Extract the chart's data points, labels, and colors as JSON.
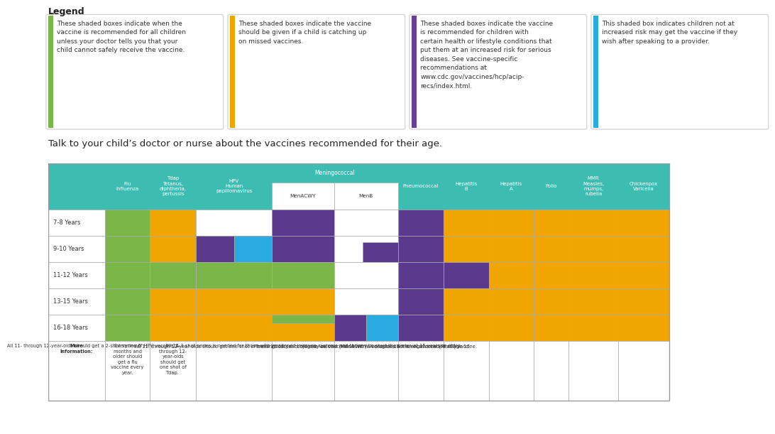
{
  "legend_items": [
    {
      "border_color": "#7ab648",
      "text": "These shaded boxes indicate when the\nvaccine is recommended for all children\nunless your doctor tells you that your\nchild cannot safely receive the vaccine."
    },
    {
      "border_color": "#f0a500",
      "text": "These shaded boxes indicate the vaccine\nshould be given if a child is catching up\non missed vaccines."
    },
    {
      "border_color": "#6a3d9a",
      "text": "These shaded boxes indicate the vaccine\nis recommended for children with\ncertain health or lifestyle conditions that\nput them at an increased risk for serious\ndiseases. See vaccine-specific\nrecommendations at\nwww.cdc.gov/vaccines/hcp/acip-\nrecs/index.html."
    },
    {
      "border_color": "#29abe2",
      "text": "This shaded box indicates children not at\nincreased risk may get the vaccine if they\nwish after speaking to a provider."
    }
  ],
  "subtitle": "Talk to your child’s doctor or nurse about the vaccines recommended for their age.",
  "teal": "#3dbdb1",
  "green": "#7ab648",
  "orange": "#f0a500",
  "purple": "#5b3a8e",
  "cyan": "#29abe2",
  "white": "#ffffff",
  "age_rows": [
    "7-8 Years",
    "9-10 Years",
    "11-12 Years",
    "13-15 Years",
    "16-18 Years"
  ],
  "more_info_col0": "More\nInformation:",
  "more_info_col1": "Everyone 6\nmonths and\nolder should\nget a flu\nvaccine every\nyear.",
  "more_info_col2": "All 11-\nthrough 12-\nyear-olds\nshould get\none shot of\nTdap.",
  "more_info_col3": "All 11- through 12-year-olds should get a 2-shot series of HPV vaccine. A 3-shot series is needed for those with weakened immune systems and those who start the series at 15 years or older.",
  "more_info_col4": "All 11- through 12-year-olds should get one shot of meningococcal conjugate vaccine (MenACWY). A booster shot is recommended at age 16.",
  "more_info_col5": "Teens 16-18 years old may be vaccinated with a serogroup B meningococcal (MenB) vaccine."
}
